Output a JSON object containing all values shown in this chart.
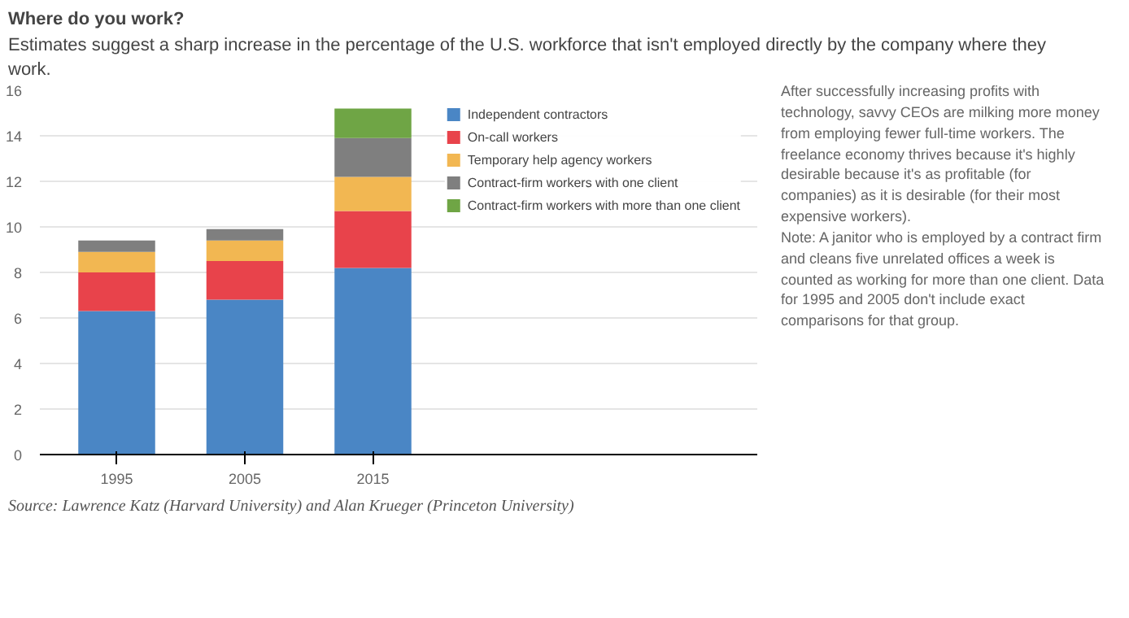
{
  "chart_data": {
    "type": "bar",
    "stacked": true,
    "title": "Where do you work?",
    "subtitle": "Estimates suggest a sharp increase in the percentage of the U.S. workforce that isn't employed directly by the company where they work.",
    "categories": [
      "1995",
      "2005",
      "2015"
    ],
    "series": [
      {
        "name": "Independent contractors",
        "color": "#4a86c5",
        "values": [
          6.3,
          6.8,
          8.2
        ]
      },
      {
        "name": "On-call workers",
        "color": "#e8434b",
        "values": [
          1.7,
          1.7,
          2.5
        ]
      },
      {
        "name": "Temporary help agency workers",
        "color": "#f2b752",
        "values": [
          0.9,
          0.9,
          1.5
        ]
      },
      {
        "name": "Contract-firm workers with one client",
        "color": "#7f7f7f",
        "values": [
          0.5,
          0.5,
          1.7
        ]
      },
      {
        "name": "Contract-firm workers with more than one client",
        "color": "#6fa545",
        "values": [
          null,
          null,
          1.3
        ]
      }
    ],
    "ylim": [
      0,
      16
    ],
    "yticks": [
      0,
      2,
      4,
      6,
      8,
      10,
      12,
      14,
      16
    ],
    "grid": "y",
    "legend": "right",
    "annotations": [
      "After successfully increasing profits with technology, savvy CEOs are milking more money from employing fewer full-time workers. The freelance economy thrives because it's highly desirable because it's as profitable (for companies) as it is desirable (for their most expensive workers).",
      "Note: A janitor who is employed by a contract firm and cleans five unrelated offices a week is counted as working for more than one client. Data for 1995 and 2005 don't include exact comparisons for that group.",
      "Source: Lawrence Katz (Harvard University) and Alan Krueger (Princeton University)"
    ]
  }
}
